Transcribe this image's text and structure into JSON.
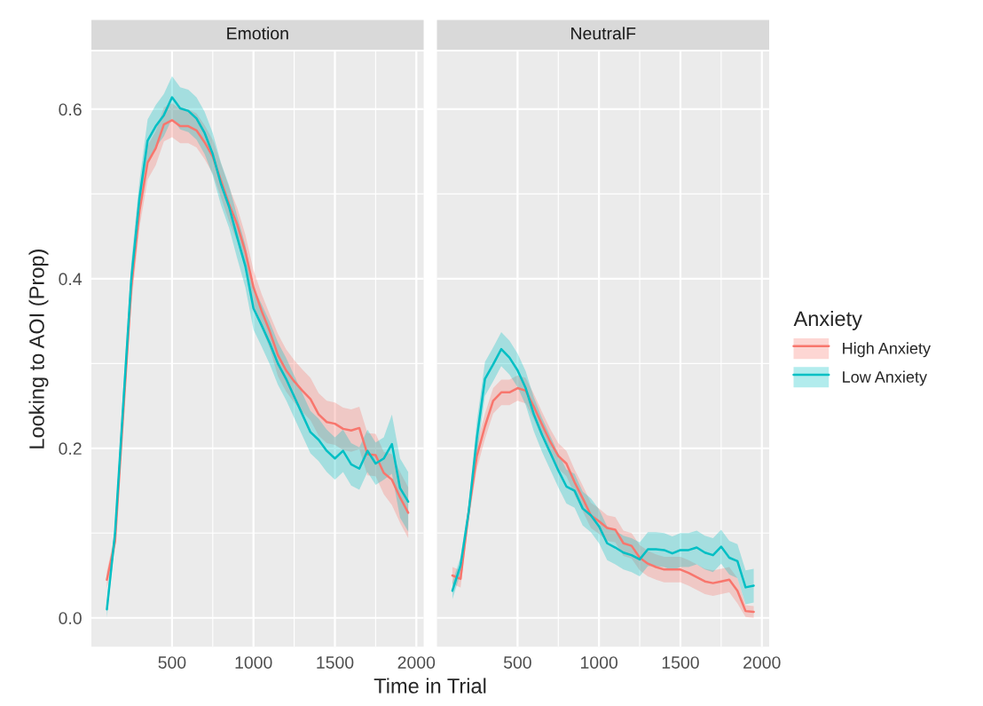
{
  "chart_data": [
    {
      "type": "line",
      "title": "Emotion",
      "ylabel": "Looking to AOI (Prop)",
      "xlabel": "Time in Trial",
      "x": [
        100,
        150,
        200,
        250,
        300,
        350,
        400,
        450,
        500,
        550,
        600,
        650,
        700,
        750,
        800,
        850,
        900,
        950,
        1000,
        1050,
        1100,
        1150,
        1200,
        1250,
        1300,
        1350,
        1400,
        1450,
        1500,
        1550,
        1600,
        1650,
        1700,
        1750,
        1800,
        1850,
        1900,
        1950
      ],
      "xlim": [
        5,
        2045
      ],
      "xticks": [
        500,
        1000,
        1500,
        2000
      ],
      "ylim": [
        -0.034,
        0.668
      ],
      "yticks": [
        {
          "value": 0,
          "label": "0.0"
        },
        0.2,
        0.4,
        0.6
      ],
      "grid": true,
      "line_style": "solid",
      "marker": "none",
      "series": [
        {
          "color": "#f8766d",
          "values": [
            0.045,
            0.09,
            0.24,
            0.39,
            0.48,
            0.537,
            0.554,
            0.582,
            0.587,
            0.58,
            0.58,
            0.575,
            0.561,
            0.544,
            0.516,
            0.488,
            0.464,
            0.432,
            0.39,
            0.362,
            0.338,
            0.31,
            0.292,
            0.279,
            0.268,
            0.258,
            0.24,
            0.231,
            0.229,
            0.223,
            0.221,
            0.224,
            0.193,
            0.192,
            0.171,
            0.163,
            0.142,
            0.124
          ],
          "lower": [
            0.035,
            0.08,
            0.23,
            0.37,
            0.46,
            0.517,
            0.534,
            0.562,
            0.567,
            0.56,
            0.56,
            0.555,
            0.541,
            0.524,
            0.496,
            0.468,
            0.444,
            0.412,
            0.37,
            0.342,
            0.318,
            0.285,
            0.267,
            0.254,
            0.243,
            0.233,
            0.215,
            0.206,
            0.204,
            0.198,
            0.196,
            0.199,
            0.168,
            0.167,
            0.146,
            0.133,
            0.112,
            0.094
          ],
          "upper": [
            0.055,
            0.1,
            0.25,
            0.41,
            0.5,
            0.557,
            0.574,
            0.602,
            0.607,
            0.6,
            0.6,
            0.595,
            0.581,
            0.564,
            0.536,
            0.508,
            0.484,
            0.452,
            0.41,
            0.382,
            0.358,
            0.335,
            0.317,
            0.304,
            0.293,
            0.283,
            0.265,
            0.256,
            0.254,
            0.248,
            0.246,
            0.249,
            0.218,
            0.217,
            0.196,
            0.193,
            0.172,
            0.154
          ]
        },
        {
          "color": "#00bfc4",
          "values": [
            0.01,
            0.1,
            0.25,
            0.4,
            0.495,
            0.563,
            0.58,
            0.593,
            0.614,
            0.601,
            0.598,
            0.589,
            0.572,
            0.547,
            0.512,
            0.485,
            0.449,
            0.415,
            0.365,
            0.345,
            0.324,
            0.3,
            0.282,
            0.261,
            0.24,
            0.219,
            0.21,
            0.197,
            0.188,
            0.197,
            0.181,
            0.176,
            0.197,
            0.182,
            0.188,
            0.205,
            0.153,
            0.137
          ],
          "lower": [
            0.0,
            0.09,
            0.23,
            0.38,
            0.475,
            0.538,
            0.555,
            0.568,
            0.589,
            0.576,
            0.573,
            0.564,
            0.547,
            0.522,
            0.487,
            0.46,
            0.424,
            0.39,
            0.34,
            0.32,
            0.299,
            0.275,
            0.257,
            0.236,
            0.215,
            0.194,
            0.185,
            0.172,
            0.163,
            0.172,
            0.156,
            0.151,
            0.172,
            0.157,
            0.163,
            0.17,
            0.118,
            0.102
          ],
          "upper": [
            0.02,
            0.11,
            0.27,
            0.42,
            0.515,
            0.588,
            0.605,
            0.618,
            0.639,
            0.626,
            0.623,
            0.614,
            0.597,
            0.572,
            0.537,
            0.51,
            0.474,
            0.44,
            0.39,
            0.37,
            0.349,
            0.325,
            0.307,
            0.286,
            0.265,
            0.244,
            0.235,
            0.222,
            0.213,
            0.222,
            0.206,
            0.201,
            0.222,
            0.207,
            0.213,
            0.24,
            0.188,
            0.172
          ]
        }
      ]
    },
    {
      "type": "line",
      "title": "NeutralF",
      "legend_title": "Anxiety",
      "x": [
        100,
        150,
        200,
        250,
        300,
        350,
        400,
        450,
        500,
        550,
        600,
        650,
        700,
        750,
        800,
        850,
        900,
        950,
        1000,
        1050,
        1100,
        1150,
        1200,
        1250,
        1300,
        1350,
        1400,
        1450,
        1500,
        1550,
        1600,
        1650,
        1700,
        1750,
        1800,
        1850,
        1900,
        1950
      ],
      "xlim": [
        5,
        2045
      ],
      "xticks": [
        500,
        1000,
        1500,
        2000
      ],
      "ylim": [
        -0.034,
        0.668
      ],
      "yticks": [
        0,
        0.2,
        0.4,
        0.6
      ],
      "tick_labels": "x",
      "grid": true,
      "legend": "right",
      "line_style": "solid",
      "marker": "none",
      "series": [
        {
          "name": "High Anxiety",
          "color": "#f8766d",
          "values": [
            0.05,
            0.046,
            0.125,
            0.191,
            0.226,
            0.256,
            0.266,
            0.266,
            0.271,
            0.268,
            0.249,
            0.228,
            0.208,
            0.191,
            0.182,
            0.16,
            0.141,
            0.121,
            0.114,
            0.106,
            0.104,
            0.088,
            0.085,
            0.071,
            0.064,
            0.06,
            0.057,
            0.057,
            0.057,
            0.053,
            0.048,
            0.043,
            0.041,
            0.043,
            0.045,
            0.032,
            0.008,
            0.007
          ],
          "lower": [
            0.04,
            0.036,
            0.115,
            0.176,
            0.211,
            0.241,
            0.251,
            0.251,
            0.256,
            0.253,
            0.234,
            0.213,
            0.193,
            0.176,
            0.167,
            0.145,
            0.126,
            0.106,
            0.099,
            0.091,
            0.089,
            0.073,
            0.07,
            0.056,
            0.049,
            0.045,
            0.042,
            0.042,
            0.042,
            0.038,
            0.033,
            0.028,
            0.026,
            0.028,
            0.03,
            0.017,
            0.001,
            0.0
          ],
          "upper": [
            0.06,
            0.056,
            0.135,
            0.206,
            0.241,
            0.271,
            0.281,
            0.281,
            0.286,
            0.283,
            0.264,
            0.243,
            0.223,
            0.206,
            0.197,
            0.175,
            0.156,
            0.136,
            0.129,
            0.121,
            0.119,
            0.103,
            0.1,
            0.086,
            0.079,
            0.075,
            0.072,
            0.072,
            0.072,
            0.068,
            0.063,
            0.058,
            0.056,
            0.058,
            0.06,
            0.047,
            0.015,
            0.014
          ]
        },
        {
          "name": "Low Anxiety",
          "color": "#00bfc4",
          "values": [
            0.032,
            0.062,
            0.125,
            0.212,
            0.282,
            0.299,
            0.317,
            0.307,
            0.292,
            0.271,
            0.24,
            0.216,
            0.195,
            0.174,
            0.155,
            0.15,
            0.129,
            0.121,
            0.108,
            0.088,
            0.083,
            0.077,
            0.074,
            0.069,
            0.081,
            0.081,
            0.08,
            0.076,
            0.08,
            0.08,
            0.083,
            0.077,
            0.074,
            0.084,
            0.071,
            0.067,
            0.036,
            0.038
          ],
          "lower": [
            0.022,
            0.052,
            0.115,
            0.192,
            0.262,
            0.279,
            0.297,
            0.287,
            0.272,
            0.251,
            0.22,
            0.196,
            0.175,
            0.154,
            0.135,
            0.13,
            0.109,
            0.101,
            0.088,
            0.068,
            0.063,
            0.057,
            0.054,
            0.049,
            0.061,
            0.061,
            0.06,
            0.056,
            0.06,
            0.06,
            0.063,
            0.057,
            0.054,
            0.064,
            0.051,
            0.047,
            0.016,
            0.018
          ],
          "upper": [
            0.042,
            0.072,
            0.135,
            0.232,
            0.302,
            0.319,
            0.337,
            0.327,
            0.312,
            0.291,
            0.26,
            0.236,
            0.215,
            0.194,
            0.175,
            0.17,
            0.149,
            0.141,
            0.128,
            0.108,
            0.103,
            0.097,
            0.094,
            0.089,
            0.101,
            0.101,
            0.1,
            0.096,
            0.1,
            0.1,
            0.103,
            0.097,
            0.094,
            0.104,
            0.091,
            0.087,
            0.056,
            0.058
          ]
        }
      ]
    }
  ]
}
